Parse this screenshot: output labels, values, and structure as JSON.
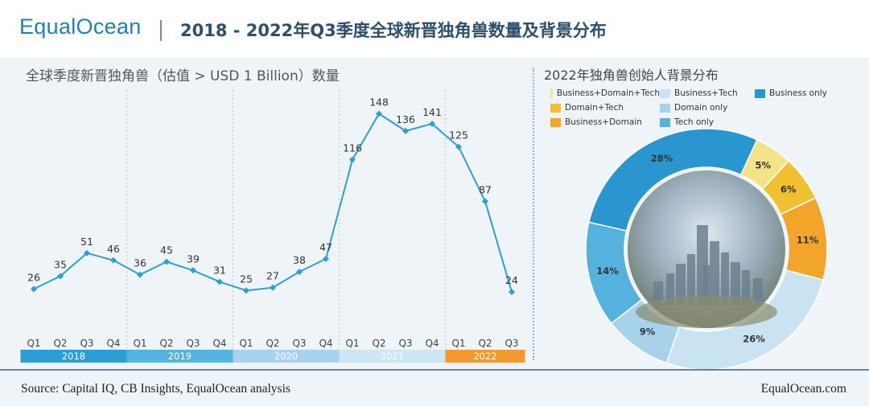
{
  "header": {
    "logo": "EqualOcean",
    "title": "2018 - 2022年Q3季度全球新晋独角兽数量及背景分布"
  },
  "footer": {
    "source": "Source:  Capital IQ, CB Insights, EqualOcean analysis",
    "site": "EqualOcean.com"
  },
  "colors": {
    "line": "#2f9fd3",
    "year_2018": "#2b9ed4",
    "year_2019": "#56b2df",
    "year_2020": "#a7d3ec",
    "year_2021": "#cde6f4",
    "year_2022": "#f29a2e"
  },
  "chart_data": [
    {
      "type": "line",
      "title": "全球季度新晋独角兽（估值 > USD 1 Billion）数量",
      "xlabel": "",
      "ylabel": "",
      "categories": [
        "Q1",
        "Q2",
        "Q3",
        "Q4",
        "Q1",
        "Q2",
        "Q3",
        "Q4",
        "Q1",
        "Q2",
        "Q3",
        "Q4",
        "Q1",
        "Q2",
        "Q3",
        "Q4",
        "Q1",
        "Q2",
        "Q3"
      ],
      "years": [
        "2018",
        "2019",
        "2020",
        "2021",
        "2022"
      ],
      "year_quarter_counts": [
        4,
        4,
        4,
        4,
        3
      ],
      "series": [
        {
          "name": "新晋独角兽数量",
          "values": [
            26,
            35,
            51,
            46,
            36,
            45,
            39,
            31,
            25,
            27,
            38,
            47,
            116,
            148,
            136,
            141,
            125,
            87,
            24
          ]
        }
      ],
      "ylim": [
        0,
        160
      ],
      "grid": false
    },
    {
      "type": "pie",
      "style": "donut",
      "title": "2022年独角兽创始人背景分布",
      "slices": [
        {
          "label": "Business+Domain+Tech",
          "value": 5,
          "color": "#f2e487",
          "label_text": "5%"
        },
        {
          "label": "Domain+Tech",
          "value": 6,
          "color": "#f0c030",
          "label_text": "6%"
        },
        {
          "label": "Business+Domain",
          "value": 11,
          "color": "#f2a52a",
          "label_text": "11%"
        },
        {
          "label": "Business+Tech",
          "value": 26,
          "color": "#c9e3f3",
          "label_text": "26%"
        },
        {
          "label": "Domain only",
          "value": 9,
          "color": "#a8d2eb",
          "label_text": "9%"
        },
        {
          "label": "Tech only",
          "value": 14,
          "color": "#55b1de",
          "label_text": "14%"
        },
        {
          "label": "Business only",
          "value": 28,
          "color": "#2a96cf",
          "label_text": "28%"
        }
      ],
      "legend": [
        {
          "label": "Business+Domain+Tech",
          "color": "#f2e487"
        },
        {
          "label": "Business+Tech",
          "color": "#c9e3f3"
        },
        {
          "label": "Business only",
          "color": "#2a96cf"
        },
        {
          "label": "Domain+Tech",
          "color": "#f0c030"
        },
        {
          "label": "Domain only",
          "color": "#a8d2eb"
        },
        {
          "label": "",
          "color": ""
        },
        {
          "label": "Business+Domain",
          "color": "#f2a52a"
        },
        {
          "label": "Tech only",
          "color": "#55b1de"
        }
      ],
      "legend_position": "top"
    }
  ]
}
